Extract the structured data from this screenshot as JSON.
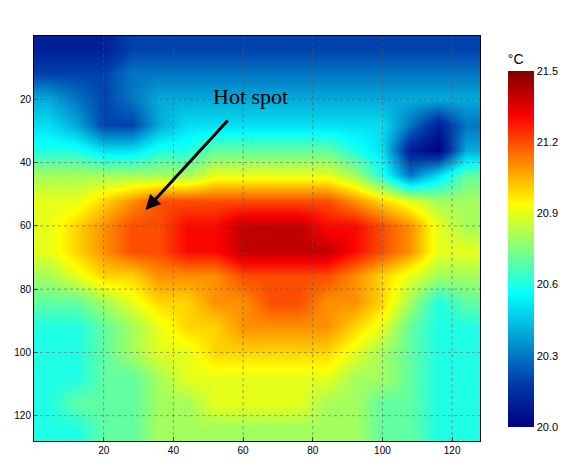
{
  "chart_data": {
    "type": "heatmap",
    "x": [
      4,
      12,
      20,
      28,
      36,
      44,
      52,
      60,
      68,
      76,
      84,
      92,
      100,
      108,
      116,
      124
    ],
    "y": [
      4,
      12,
      20,
      28,
      36,
      44,
      52,
      60,
      68,
      76,
      84,
      92,
      100,
      108,
      116,
      124
    ],
    "cells": [
      [
        20.1,
        20.1,
        20.1,
        20.2,
        20.2,
        20.2,
        20.2,
        20.2,
        20.2,
        20.2,
        20.2,
        20.2,
        20.2,
        20.2,
        20.2,
        20.2
      ],
      [
        20.2,
        20.2,
        20.2,
        20.3,
        20.3,
        20.3,
        20.3,
        20.3,
        20.3,
        20.3,
        20.3,
        20.3,
        20.3,
        20.3,
        20.3,
        20.3
      ],
      [
        20.4,
        20.3,
        20.2,
        20.3,
        20.4,
        20.4,
        20.4,
        20.4,
        20.4,
        20.4,
        20.4,
        20.4,
        20.4,
        20.4,
        20.4,
        20.4
      ],
      [
        20.5,
        20.4,
        20.2,
        20.2,
        20.4,
        20.5,
        20.5,
        20.5,
        20.5,
        20.5,
        20.5,
        20.5,
        20.5,
        20.3,
        20.1,
        20.3
      ],
      [
        20.6,
        20.6,
        20.5,
        20.5,
        20.6,
        20.6,
        20.7,
        20.7,
        20.7,
        20.7,
        20.7,
        20.6,
        20.5,
        20.1,
        20.0,
        20.4
      ],
      [
        20.8,
        20.8,
        20.8,
        20.8,
        20.8,
        20.8,
        20.9,
        20.9,
        20.9,
        20.9,
        20.9,
        20.8,
        20.6,
        20.3,
        20.5,
        20.7
      ],
      [
        20.9,
        20.9,
        21.0,
        21.1,
        21.2,
        21.2,
        21.2,
        21.2,
        21.2,
        21.2,
        21.2,
        21.1,
        21.0,
        20.9,
        20.8,
        20.8
      ],
      [
        20.9,
        21.0,
        21.1,
        21.2,
        21.2,
        21.3,
        21.3,
        21.4,
        21.4,
        21.4,
        21.3,
        21.3,
        21.2,
        21.1,
        20.9,
        20.8
      ],
      [
        20.9,
        21.0,
        21.1,
        21.2,
        21.2,
        21.3,
        21.3,
        21.4,
        21.4,
        21.4,
        21.4,
        21.3,
        21.2,
        21.1,
        20.9,
        20.9
      ],
      [
        20.8,
        20.9,
        21.0,
        21.0,
        21.1,
        21.1,
        21.1,
        21.2,
        21.2,
        21.2,
        21.2,
        21.1,
        21.0,
        20.9,
        20.8,
        20.8
      ],
      [
        20.7,
        20.7,
        20.8,
        20.9,
        21.0,
        21.0,
        21.1,
        21.1,
        21.2,
        21.2,
        21.1,
        21.1,
        21.0,
        20.8,
        20.6,
        20.7
      ],
      [
        20.6,
        20.6,
        20.7,
        20.8,
        20.9,
        21.0,
        21.0,
        21.1,
        21.1,
        21.1,
        21.1,
        21.0,
        20.9,
        20.7,
        20.6,
        20.6
      ],
      [
        20.6,
        20.6,
        20.7,
        20.8,
        20.9,
        20.9,
        21.0,
        21.0,
        21.0,
        21.0,
        21.0,
        20.9,
        20.8,
        20.7,
        20.6,
        20.6
      ],
      [
        20.6,
        20.6,
        20.7,
        20.7,
        20.8,
        20.9,
        20.9,
        20.9,
        20.9,
        20.9,
        20.9,
        20.8,
        20.8,
        20.7,
        20.6,
        20.6
      ],
      [
        20.6,
        20.7,
        20.7,
        20.7,
        20.8,
        20.8,
        20.9,
        20.9,
        20.9,
        20.9,
        20.8,
        20.8,
        20.7,
        20.7,
        20.6,
        20.6
      ],
      [
        20.6,
        20.6,
        20.7,
        20.7,
        20.8,
        20.8,
        20.8,
        20.8,
        20.8,
        20.8,
        20.8,
        20.8,
        20.7,
        20.7,
        20.6,
        20.6
      ]
    ],
    "xlim": [
      0,
      128
    ],
    "ylim": [
      128,
      0
    ],
    "xticks": [
      20,
      40,
      60,
      80,
      100,
      120
    ],
    "yticks": [
      20,
      40,
      60,
      80,
      100,
      120
    ],
    "grid": true,
    "colorbar": {
      "title": "°C",
      "range": [
        20,
        21.5
      ],
      "ticks": [
        {
          "value": 20,
          "label": "20.0"
        },
        20.3,
        20.6,
        20.9,
        21.2,
        21.5
      ]
    },
    "annotations": [
      {
        "text": "Hot spot",
        "x": 32,
        "y": 55,
        "text_x": 62,
        "text_y": 19
      }
    ]
  }
}
